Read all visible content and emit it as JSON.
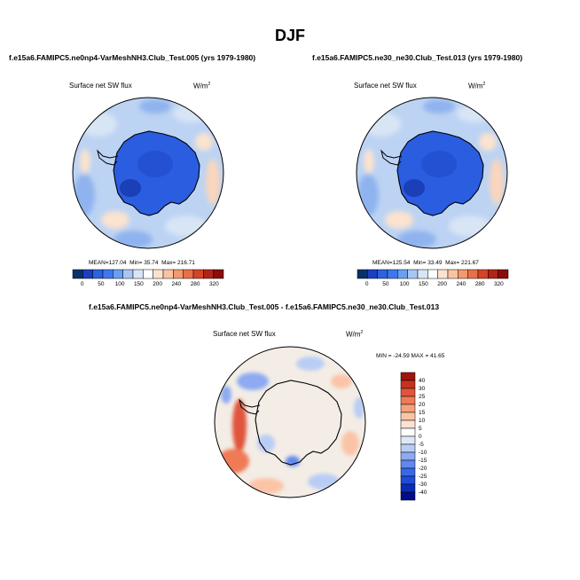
{
  "season": "DJF",
  "panels": [
    {
      "title": "f.e15a6.FAMIPC5.ne0np4-VarMeshNH3.Club_Test.005 (yrs 1979-1980)",
      "variable": "Surface net SW flux",
      "units": "W/m",
      "units_exp": "2",
      "stats": {
        "mean_label": "MEAN=",
        "mean": "127.04",
        "min_label": "Min=",
        "min": "35.74",
        "max_label": "Max=",
        "max": "216.71"
      }
    },
    {
      "title": "f.e15a6.FAMIPC5.ne30_ne30.Club_Test.013 (yrs 1979-1980)",
      "variable": "Surface net SW flux",
      "units": "W/m",
      "units_exp": "2",
      "stats": {
        "mean_label": "MEAN=",
        "mean": "125.54",
        "min_label": "Min=",
        "min": "33.49",
        "max_label": "Max=",
        "max": "221.67"
      }
    },
    {
      "title": "f.e15a6.FAMIPC5.ne0np4-VarMeshNH3.Club_Test.005 - f.e15a6.FAMIPC5.ne30_ne30.Club_Test.013",
      "variable": "Surface net SW flux",
      "units": "W/m",
      "units_exp": "2",
      "stats_text": "MIN = -24.59 MAX = 41.65"
    }
  ],
  "chart_data": [
    {
      "type": "heatmap",
      "projection": "south-polar-stereographic",
      "title": "f.e15a6.FAMIPC5.ne0np4-VarMeshNH3.Club_Test.005 (yrs 1979-1980)",
      "variable": "Surface net SW flux",
      "units": "W/m2",
      "mean": 127.04,
      "min": 35.74,
      "max": 216.71,
      "levels": [
        0,
        50,
        100,
        150,
        200,
        240,
        280,
        320
      ],
      "colorbar": {
        "orientation": "horizontal",
        "tick_labels": [
          "0",
          "50",
          "100",
          "150",
          "200",
          "240",
          "280",
          "320"
        ],
        "colors": [
          "#08306b",
          "#1c3fbf",
          "#2c62e0",
          "#3f78ec",
          "#6a9ff0",
          "#a8c6f2",
          "#d8e5f5",
          "#ffffff",
          "#fbe3cf",
          "#f9c3a2",
          "#f2996f",
          "#e8704a",
          "#d44528",
          "#b22417",
          "#8a0d0c"
        ]
      }
    },
    {
      "type": "heatmap",
      "projection": "south-polar-stereographic",
      "title": "f.e15a6.FAMIPC5.ne30_ne30.Club_Test.013 (yrs 1979-1980)",
      "variable": "Surface net SW flux",
      "units": "W/m2",
      "mean": 125.54,
      "min": 33.49,
      "max": 221.67,
      "levels": [
        0,
        50,
        100,
        150,
        200,
        240,
        280,
        320
      ],
      "colorbar": {
        "orientation": "horizontal",
        "tick_labels": [
          "0",
          "50",
          "100",
          "150",
          "200",
          "240",
          "280",
          "320"
        ],
        "colors": [
          "#08306b",
          "#1c3fbf",
          "#2c62e0",
          "#3f78ec",
          "#6a9ff0",
          "#a8c6f2",
          "#d8e5f5",
          "#ffffff",
          "#fbe3cf",
          "#f9c3a2",
          "#f2996f",
          "#e8704a",
          "#d44528",
          "#b22417",
          "#8a0d0c"
        ]
      }
    },
    {
      "type": "heatmap",
      "projection": "south-polar-stereographic",
      "title": "f.e15a6.FAMIPC5.ne0np4-VarMeshNH3.Club_Test.005 - f.e15a6.FAMIPC5.ne30_ne30.Club_Test.013",
      "variable": "Surface net SW flux",
      "units": "W/m2",
      "min": -24.59,
      "max": 41.65,
      "levels": [
        -40,
        -30,
        -25,
        -20,
        -15,
        -10,
        -5,
        0,
        5,
        10,
        15,
        20,
        25,
        30,
        40
      ],
      "colorbar": {
        "orientation": "vertical",
        "tick_labels": [
          "40",
          "30",
          "25",
          "20",
          "15",
          "10",
          "5",
          "0",
          "-5",
          "-10",
          "-15",
          "-20",
          "-25",
          "-30",
          "-40"
        ],
        "colors": [
          "#000c8a",
          "#0a2bb4",
          "#1f4bd8",
          "#3a67e8",
          "#6088ee",
          "#8daaf2",
          "#b9cdf4",
          "#dfe8f6",
          "#ffffff",
          "#fde2d2",
          "#fbc4a7",
          "#f6a17e",
          "#ef7a57",
          "#e0553a",
          "#c53320",
          "#9e150e"
        ]
      }
    }
  ]
}
